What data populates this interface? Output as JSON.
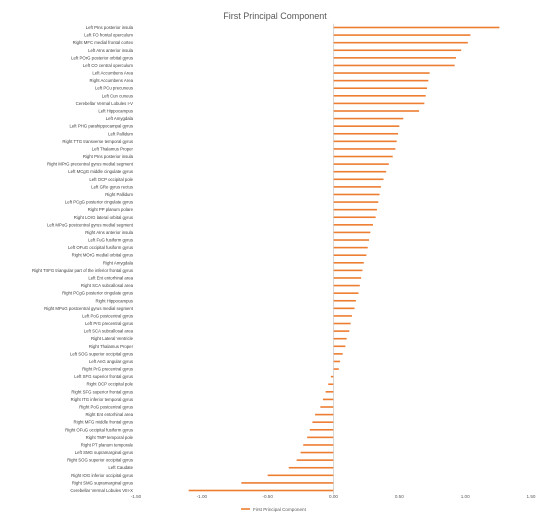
{
  "chart_data": {
    "type": "bar",
    "orientation": "horizontal",
    "title": "First Principal Component",
    "xlabel": "",
    "ylabel": "",
    "xlim": [
      -1.5,
      1.5
    ],
    "x_ticks": [
      "-1.50",
      "-1.00",
      "-0.50",
      "0.00",
      "0.50",
      "1.00",
      "1.50"
    ],
    "x_tick_values": [
      -1.5,
      -1.0,
      -0.5,
      0.0,
      0.5,
      1.0,
      1.5
    ],
    "grid": false,
    "legend_position": "bottom",
    "bar_color": "#ED7D31",
    "series": [
      {
        "name": "First Principal Component"
      }
    ],
    "categories": [
      "Left PIns posterior insula",
      "Left FO frontal operculum",
      "Right MFC medial frontal cortex",
      "Left AIns anterior insula",
      "Left POrG posterior orbital gyrus",
      "Left CO central operculum",
      "Left Accumbens Area",
      "Right Accumbens Area",
      "Left PCu precuneus",
      "Left Cun cuneus",
      "Cerebellar Vermal Lobules I-V",
      "Left Hippocampus",
      "Left Amygdala",
      "Left PHG parahippocampal gyrus",
      "Left Pallidum",
      "Right TTG transverse temporal gyrus",
      "Left Thalamus Proper",
      "Right PIns posterior insula",
      "Right MPrG precentral gyrus medial segment",
      "Left MCgG middle cingulate gyrus",
      "Left OCP occipital pole",
      "Left GRe gyrus rectus",
      "Right Pallidum",
      "Left PCgG posterior cingulate gyrus",
      "Right PP planum polare",
      "Right LOrG lateral orbital gyrus",
      "Left MPoG postcentral gyrus medial segment",
      "Right AIns anterior insula",
      "Left FuG fusiform gyrus",
      "Left OFuG occipital fusiform gyrus",
      "Right MOrG medial orbital gyrus",
      "Right Amygdala",
      "Right TrIFG triangular part of the inferior frontal gyrus",
      "Left Ent entorhinal area",
      "Right SCA subcallosal area",
      "Right PCgG posterior cingulate gyrus",
      "Right Hippocampus",
      "Right MPoG postcentral gyrus medial segment",
      "Left PoG postcentral gyrus",
      "Left PrG precentral gyrus",
      "Left SCA subcallosal area",
      "Right Lateral Ventricle",
      "Right Thalamus Proper",
      "Left SOG superior occipital gyrus",
      "Left AnG angular gyrus",
      "Right PrG precentral gyrus",
      "Left SFG superior frontal gyrus",
      "Right OCP occipital pole",
      "Right SFG superior frontal gyrus",
      "Right ITG inferior temporal gyrus",
      "Right PoG postcentral gyrus",
      "Right Ent entorhinal area",
      "Right MFG middle frontal gyrus",
      "Right OFuG occipital fusiform gyrus",
      "Right TMP temporal pole",
      "Right PT planum temporale",
      "Left SMG supramarginal gyrus",
      "Right SOG superior occipital gyrus",
      "Left Caudate",
      "Right IOG inferior occipital gyrus",
      "Right SMG supramarginal gyrus",
      "Cerebellar Vermal Lobules VIII-X"
    ],
    "values": [
      1.26,
      1.04,
      1.02,
      0.97,
      0.93,
      0.92,
      0.73,
      0.72,
      0.71,
      0.7,
      0.69,
      0.65,
      0.53,
      0.5,
      0.49,
      0.48,
      0.47,
      0.45,
      0.42,
      0.4,
      0.38,
      0.36,
      0.35,
      0.34,
      0.33,
      0.32,
      0.3,
      0.28,
      0.27,
      0.26,
      0.25,
      0.23,
      0.22,
      0.21,
      0.2,
      0.19,
      0.17,
      0.16,
      0.14,
      0.13,
      0.12,
      0.1,
      0.09,
      0.07,
      0.05,
      0.04,
      -0.02,
      -0.04,
      -0.06,
      -0.08,
      -0.1,
      -0.14,
      -0.16,
      -0.18,
      -0.2,
      -0.23,
      -0.25,
      -0.28,
      -0.34,
      -0.5,
      -0.7,
      -1.1
    ]
  }
}
